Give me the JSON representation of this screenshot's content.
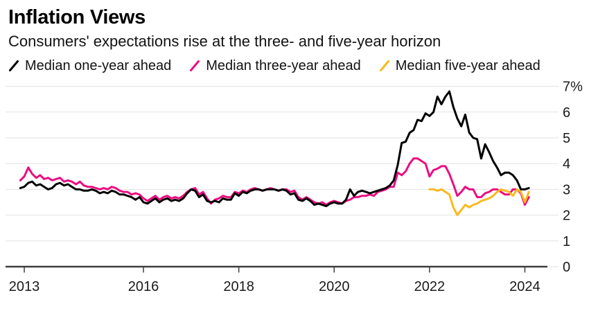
{
  "header": {
    "title": "Inflation Views",
    "subtitle": "Consumers' expectations rise at the three- and five-year horizon"
  },
  "colors": {
    "one_year": "#000000",
    "three_year": "#EC0D80",
    "five_year": "#FAB91E",
    "grid": "#E2E2E2",
    "axis": "#3D3D3D",
    "tick_text": "#1A1A1A"
  },
  "chart_data": {
    "type": "line",
    "title": "Inflation Views",
    "subtitle": "Consumers' expectations rise at the three- and five-year horizon",
    "unit": "%",
    "ylim": [
      0,
      7
    ],
    "grid": "horizontal",
    "legend_position": "top",
    "frequency": "monthly",
    "x_range_years": [
      2013.4167,
      2024.0833
    ],
    "y_axis": {
      "side": "right",
      "ticks": [
        {
          "v": 7,
          "label": "7%"
        },
        {
          "v": 6,
          "label": "6"
        },
        {
          "v": 5,
          "label": "5"
        },
        {
          "v": 4,
          "label": "4"
        },
        {
          "v": 3,
          "label": "3"
        },
        {
          "v": 2,
          "label": "2"
        },
        {
          "v": 1,
          "label": "1"
        },
        {
          "v": 0,
          "label": "0"
        }
      ]
    },
    "x_axis": {
      "ticks": [
        {
          "label": "2013",
          "t": 2013.5
        },
        {
          "label": "2016",
          "t": 2016.0
        },
        {
          "label": "2018",
          "t": 2018.0
        },
        {
          "label": "2020",
          "t": 2020.0
        },
        {
          "label": "2022",
          "t": 2022.0
        },
        {
          "label": "2024",
          "t": 2024.0
        }
      ]
    },
    "series": [
      {
        "name": "Median one-year ahead",
        "color": "#000000",
        "start_year": 2013,
        "start_month": 6,
        "values": [
          3.05,
          3.1,
          3.25,
          3.3,
          3.15,
          3.2,
          3.1,
          3.0,
          3.05,
          3.2,
          3.25,
          3.15,
          3.2,
          3.1,
          3.0,
          3.0,
          2.95,
          2.95,
          3.0,
          2.95,
          2.85,
          2.9,
          2.85,
          2.95,
          2.9,
          2.8,
          2.8,
          2.75,
          2.7,
          2.6,
          2.7,
          2.5,
          2.45,
          2.55,
          2.65,
          2.5,
          2.6,
          2.65,
          2.55,
          2.6,
          2.55,
          2.65,
          2.85,
          3.0,
          2.95,
          2.7,
          2.8,
          2.55,
          2.5,
          2.55,
          2.5,
          2.65,
          2.6,
          2.6,
          2.85,
          2.75,
          2.9,
          2.85,
          2.95,
          3.0,
          3.0,
          2.95,
          3.0,
          3.0,
          3.0,
          2.95,
          3.0,
          2.95,
          2.8,
          2.85,
          2.6,
          2.55,
          2.65,
          2.55,
          2.4,
          2.45,
          2.4,
          2.35,
          2.45,
          2.5,
          2.45,
          2.45,
          2.6,
          3.0,
          2.75,
          2.9,
          2.95,
          2.9,
          2.85,
          2.9,
          2.95,
          3.0,
          3.05,
          3.15,
          3.35,
          3.95,
          4.8,
          4.85,
          5.2,
          5.3,
          5.7,
          5.65,
          5.95,
          5.85,
          6.0,
          6.6,
          6.3,
          6.6,
          6.8,
          6.2,
          5.75,
          5.45,
          5.9,
          5.2,
          5.0,
          4.95,
          4.2,
          4.75,
          4.45,
          4.1,
          3.85,
          3.55,
          3.65,
          3.65,
          3.55,
          3.35,
          3.0,
          3.0,
          3.05
        ]
      },
      {
        "name": "Median three-year ahead",
        "color": "#EC0D80",
        "start_year": 2013,
        "start_month": 6,
        "values": [
          3.35,
          3.5,
          3.85,
          3.6,
          3.45,
          3.55,
          3.4,
          3.45,
          3.35,
          3.4,
          3.45,
          3.3,
          3.35,
          3.3,
          3.2,
          3.3,
          3.15,
          3.1,
          3.1,
          3.05,
          3.0,
          3.05,
          3.0,
          3.1,
          3.05,
          2.95,
          2.9,
          2.9,
          2.8,
          2.85,
          2.8,
          2.65,
          2.55,
          2.65,
          2.75,
          2.6,
          2.7,
          2.75,
          2.65,
          2.7,
          2.65,
          2.75,
          2.9,
          3.0,
          3.05,
          2.8,
          2.9,
          2.65,
          2.45,
          2.6,
          2.65,
          2.75,
          2.7,
          2.7,
          2.9,
          2.85,
          2.95,
          2.9,
          3.0,
          3.05,
          3.0,
          2.95,
          3.0,
          3.05,
          3.0,
          2.95,
          3.0,
          3.0,
          2.9,
          2.95,
          2.7,
          2.6,
          2.7,
          2.6,
          2.5,
          2.45,
          2.5,
          2.4,
          2.5,
          2.55,
          2.5,
          2.45,
          2.55,
          2.6,
          2.7,
          2.7,
          2.75,
          2.75,
          2.8,
          2.75,
          2.9,
          2.95,
          3.0,
          3.1,
          3.1,
          3.65,
          3.55,
          3.7,
          4.0,
          4.2,
          4.2,
          4.1,
          4.0,
          3.5,
          3.75,
          3.8,
          3.9,
          3.9,
          3.6,
          3.2,
          2.75,
          2.9,
          3.1,
          3.0,
          3.0,
          2.7,
          2.7,
          2.85,
          2.9,
          3.0,
          3.0,
          2.9,
          2.8,
          2.8,
          3.0,
          3.0,
          2.85,
          2.4,
          2.7
        ]
      },
      {
        "name": "Median five-year ahead",
        "color": "#FAB91E",
        "start_year": 2022,
        "start_month": 1,
        "values": [
          3.0,
          3.0,
          2.95,
          3.0,
          2.9,
          2.8,
          2.3,
          2.0,
          2.2,
          2.4,
          2.3,
          2.4,
          2.45,
          2.55,
          2.6,
          2.65,
          2.75,
          2.9,
          3.0,
          2.95,
          2.9,
          2.75,
          3.0,
          2.9,
          2.5,
          2.9
        ]
      }
    ]
  }
}
